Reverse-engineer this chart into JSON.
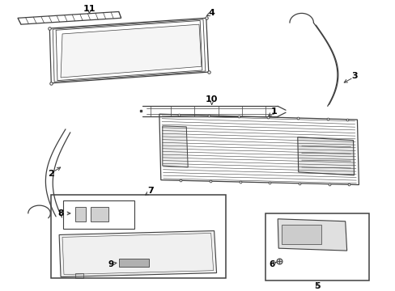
{
  "bg_color": "#ffffff",
  "line_color": "#404040",
  "lw": 0.9,
  "fig_width": 4.89,
  "fig_height": 3.6,
  "dpi": 100
}
